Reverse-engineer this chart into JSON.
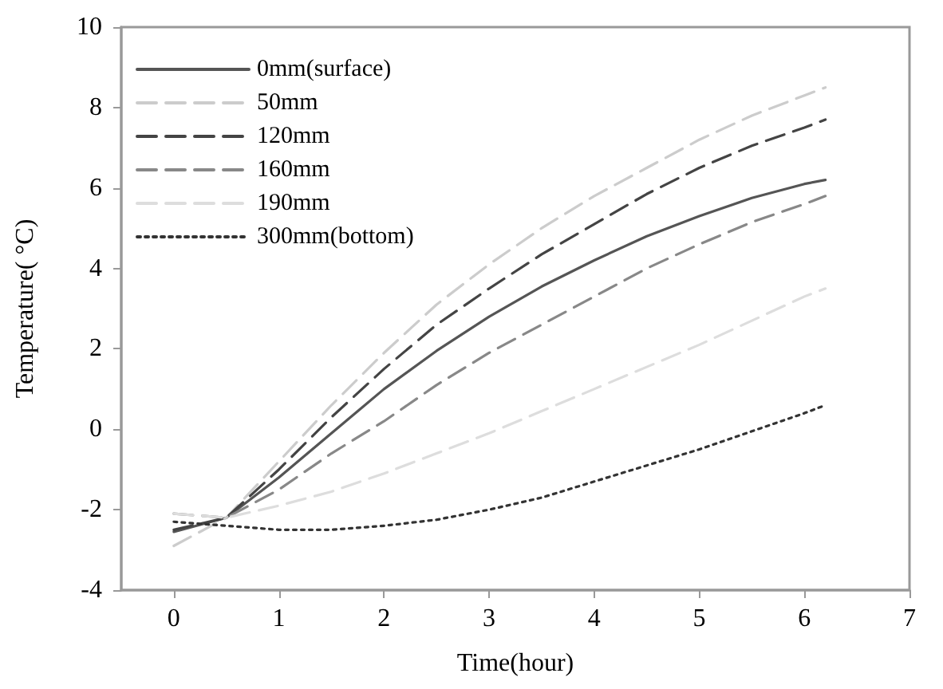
{
  "chart_data": {
    "type": "line",
    "xlabel": "Time(hour)",
    "ylabel": "Temperature( °C)",
    "x": [
      0,
      0.5,
      1,
      1.5,
      2,
      2.5,
      3,
      3.5,
      4,
      4.5,
      5,
      5.5,
      6,
      6.2
    ],
    "series": [
      {
        "name": "0mm(surface)",
        "color": "#555555",
        "line_style": "solid",
        "values": [
          -2.55,
          -2.2,
          -1.2,
          -0.1,
          1,
          1.95,
          2.8,
          3.55,
          4.2,
          4.8,
          5.3,
          5.75,
          6.1,
          6.2
        ]
      },
      {
        "name": "50mm",
        "color": "#cccccc",
        "line_style": "dashed",
        "values": [
          -2.9,
          -2.2,
          -0.8,
          0.6,
          1.9,
          3.1,
          4.1,
          5,
          5.8,
          6.5,
          7.2,
          7.8,
          8.3,
          8.5
        ]
      },
      {
        "name": "120mm",
        "color": "#444444",
        "line_style": "dashed",
        "values": [
          -2.5,
          -2.2,
          -1,
          0.3,
          1.5,
          2.6,
          3.5,
          4.35,
          5.1,
          5.85,
          6.5,
          7.05,
          7.5,
          7.7
        ]
      },
      {
        "name": "160mm",
        "color": "#888888",
        "line_style": "dashed",
        "values": [
          -2.1,
          -2.2,
          -1.5,
          -0.6,
          0.2,
          1.1,
          1.9,
          2.6,
          3.3,
          4,
          4.6,
          5.15,
          5.6,
          5.8
        ]
      },
      {
        "name": "190mm",
        "color": "#dddddd",
        "line_style": "dashed",
        "values": [
          -2.1,
          -2.2,
          -1.9,
          -1.55,
          -1.1,
          -0.6,
          -0.1,
          0.45,
          1,
          1.55,
          2.1,
          2.7,
          3.3,
          3.5
        ]
      },
      {
        "name": "300mm(bottom)",
        "color": "#333333",
        "line_style": "dotted",
        "values": [
          -2.3,
          -2.4,
          -2.5,
          -2.5,
          -2.4,
          -2.25,
          -2,
          -1.7,
          -1.3,
          -0.9,
          -0.5,
          -0.05,
          0.4,
          0.6
        ]
      }
    ],
    "xlim": [
      -0.5,
      7
    ],
    "xticks": [
      0,
      1,
      2,
      3,
      4,
      5,
      6,
      7
    ],
    "ylim": [
      -4,
      10
    ],
    "yticks": [
      -4,
      -2,
      0,
      2,
      4,
      6,
      8,
      10
    ],
    "grid": false,
    "legend": "top left",
    "marker": "none"
  }
}
